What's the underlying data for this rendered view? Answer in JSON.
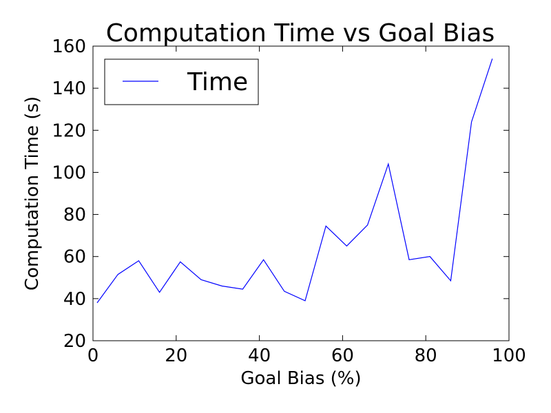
{
  "chart_data": {
    "type": "line",
    "title": "Computation Time vs Goal Bias",
    "xlabel": "Goal Bias (%)",
    "ylabel": "Computation Time (s)",
    "xlim": [
      0,
      100
    ],
    "ylim": [
      20,
      160
    ],
    "xticks": [
      0,
      20,
      40,
      60,
      80,
      100
    ],
    "yticks": [
      20,
      40,
      60,
      80,
      100,
      120,
      140,
      160
    ],
    "grid": false,
    "legend_position": "top-left",
    "series": [
      {
        "name": "Time",
        "color": "#0000ff",
        "x": [
          1,
          6,
          11,
          16,
          21,
          26,
          31,
          36,
          41,
          46,
          51,
          56,
          61,
          66,
          71,
          76,
          81,
          86,
          91,
          96
        ],
        "y": [
          38,
          51.5,
          58,
          43,
          57.5,
          49,
          46,
          44.5,
          58.5,
          43.5,
          39,
          74.5,
          65,
          75,
          104,
          58.5,
          60,
          48.5,
          124,
          154
        ]
      }
    ]
  }
}
